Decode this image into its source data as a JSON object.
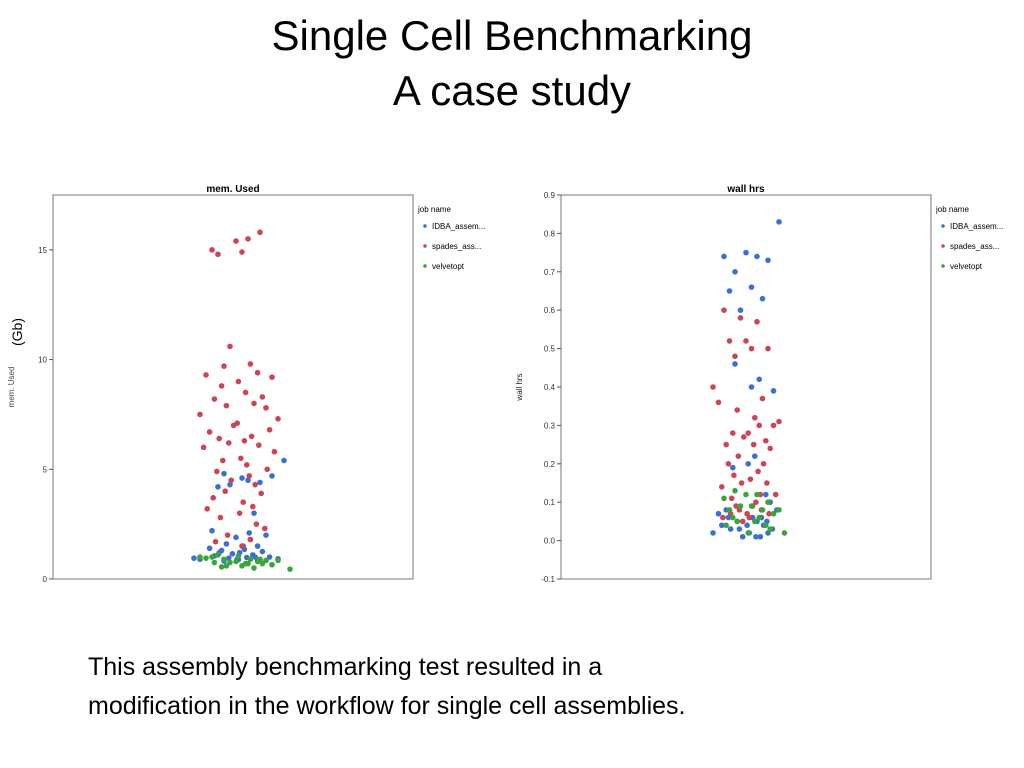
{
  "slide": {
    "title_line1": "Single Cell Benchmarking",
    "title_line2": "A case study",
    "gb_label": "(Gb)",
    "caption_line1": "This assembly benchmarking test resulted in a",
    "caption_line2": "modification in the workflow for single cell assemblies."
  },
  "colors": {
    "IDBA_assem...": "#3b6fd1",
    "spades_ass...": "#cc4455",
    "velvetopt": "#3aa63a"
  },
  "chart_data": [
    {
      "type": "scatter",
      "title": "mem. Used",
      "xlabel": "",
      "ylabel": "mem. Used",
      "ylim": [
        0,
        17.5
      ],
      "yticks": [
        0,
        5,
        10,
        15
      ],
      "grid": false,
      "legend_title": "job name",
      "legend_position": "top-right",
      "series": [
        {
          "name": "IDBA_assem...",
          "x": [
            -0.1,
            0.05,
            0.2,
            -0.15,
            0.3,
            0.1,
            -0.05,
            0.15,
            -0.2,
            0.25,
            0,
            0.12,
            -0.08,
            0.18,
            -0.22,
            0.07,
            -0.12,
            0.22,
            0.03,
            -0.03,
            0.14,
            -0.18,
            0.28,
            0.09,
            -0.06,
            0.35,
            -0.3,
            0.02,
            0.2,
            -0.1,
            0.11,
            0.06,
            -0.14,
            0.16,
            0.01,
            0.4,
            -0.35
          ],
          "y": [
            4.8,
            4.6,
            4.4,
            4.2,
            4.7,
            4.5,
            4.3,
            3,
            2.2,
            2,
            1.9,
            1.8,
            1.6,
            1.5,
            1.4,
            1.35,
            1.3,
            1.25,
            1.2,
            1.15,
            1.1,
            1.05,
            1,
            0.98,
            0.95,
            0.92,
            0.9,
            0.88,
            0.85,
            0.82,
            2.1,
            1.5,
            1.2,
            1.0,
            0.9,
            5.4,
            0.95
          ]
        },
        {
          "name": "spades_ass...",
          "x": [
            0,
            0.1,
            -0.15,
            0.2,
            0.05,
            -0.2,
            -0.05,
            0.12,
            -0.1,
            0.18,
            -0.25,
            0.3,
            0.02,
            -0.12,
            0.08,
            0.22,
            -0.18,
            0.15,
            -0.08,
            0.25,
            -0.3,
            0.35,
            0.01,
            -0.02,
            0.28,
            -0.22,
            0.13,
            -0.14,
            0.07,
            -0.06,
            0.19,
            -0.27,
            0.32,
            0.04,
            -0.11,
            0.09,
            0.26,
            -0.16,
            0.11,
            -0.04,
            0.16,
            -0.09,
            0.21,
            -0.19,
            0.06,
            0.14,
            -0.24,
            0.03,
            -0.13,
            0.17,
            0.24,
            -0.07,
            0.12,
            -0.17,
            0.05
          ],
          "y": [
            15.4,
            15.5,
            14.8,
            15.8,
            14.9,
            15.0,
            10.6,
            9.8,
            9.7,
            9.4,
            9.3,
            9.2,
            9.0,
            8.8,
            8.5,
            8.3,
            8.2,
            8.0,
            7.9,
            7.8,
            7.5,
            7.3,
            7.1,
            7.0,
            6.8,
            6.7,
            6.5,
            6.4,
            6.3,
            6.2,
            6.1,
            6.0,
            5.8,
            5.5,
            5.4,
            5.2,
            5.0,
            4.9,
            4.7,
            4.5,
            4.3,
            4.0,
            3.9,
            3.7,
            3.5,
            3.3,
            3.2,
            3.0,
            2.8,
            2.5,
            2.3,
            2.0,
            1.8,
            1.7,
            1.5
          ]
        },
        {
          "name": "velvetopt",
          "x": [
            -0.2,
            -0.1,
            0,
            0.1,
            0.2,
            -0.15,
            0.05,
            0.15,
            -0.05,
            0.25,
            -0.25,
            0.3,
            0.02,
            -0.12,
            0.08,
            0.18,
            -0.08,
            0.12,
            -0.18,
            0.22,
            0.45,
            0.35,
            -0.3
          ],
          "y": [
            1.0,
            0.9,
            0.8,
            0.7,
            0.9,
            1.1,
            0.6,
            0.5,
            0.75,
            0.85,
            0.95,
            0.65,
            1.05,
            0.55,
            0.7,
            0.8,
            0.6,
            0.9,
            0.75,
            0.7,
            0.45,
            0.85,
            1.0
          ]
        }
      ]
    },
    {
      "type": "scatter",
      "title": "wall hrs",
      "xlabel": "",
      "ylabel": "wall hrs",
      "ylim": [
        -0.1,
        0.9
      ],
      "yticks": [
        -0.1,
        0.0,
        0.1,
        0.2,
        0.3,
        0.4,
        0.5,
        0.6,
        0.7,
        0.8,
        0.9
      ],
      "grid": false,
      "legend_title": "job name",
      "legend_position": "top-right",
      "series": [
        {
          "name": "IDBA_assem...",
          "x": [
            0.3,
            -0.2,
            0,
            0.1,
            -0.1,
            0.05,
            0.15,
            -0.15,
            0.2,
            -0.05,
            0.12,
            0.05,
            -0.1,
            0.25,
            0.08,
            0.02,
            -0.12,
            0.18,
            0.22,
            -0.18,
            0.28,
            -0.25,
            0.06,
            0.14,
            -0.08,
            0.1,
            -0.22,
            0.01,
            0.16,
            -0.14,
            0.24,
            -0.06,
            0.2,
            -0.3,
            0.03,
            0.09,
            -0.03,
            0.13,
            -0.16,
            0.19
          ],
          "y": [
            0.83,
            0.74,
            0.75,
            0.74,
            0.7,
            0.66,
            0.63,
            0.65,
            0.73,
            0.6,
            0.42,
            0.4,
            0.46,
            0.39,
            0.22,
            0.2,
            0.19,
            0.12,
            0.1,
            0.08,
            0.08,
            0.07,
            0.06,
            0.06,
            0.05,
            0.05,
            0.04,
            0.04,
            0.04,
            0.03,
            0.03,
            0.03,
            0.02,
            0.02,
            0.02,
            0.01,
            0.01,
            0.01,
            0.06,
            0.05
          ]
        },
        {
          "name": "spades_ass...",
          "x": [
            -0.2,
            -0.05,
            0.1,
            0,
            -0.3,
            -0.15,
            0.05,
            0.2,
            -0.1,
            0.15,
            -0.25,
            0.25,
            0.08,
            -0.08,
            0.12,
            0.3,
            -0.12,
            0.18,
            -0.18,
            0.22,
            0.02,
            -0.02,
            0.07,
            -0.07,
            0.16,
            -0.16,
            0.11,
            -0.11,
            0.04,
            -0.04,
            0.19,
            -0.22,
            0.27,
            0.13,
            -0.13,
            0.09,
            -0.09,
            0.06,
            -0.06,
            0.14,
            -0.14,
            0.01,
            0.21,
            -0.21,
            0.03,
            -0.03
          ],
          "y": [
            0.6,
            0.58,
            0.57,
            0.52,
            0.4,
            0.52,
            0.5,
            0.5,
            0.48,
            0.37,
            0.36,
            0.3,
            0.32,
            0.34,
            0.3,
            0.31,
            0.28,
            0.26,
            0.25,
            0.24,
            0.28,
            0.27,
            0.25,
            0.22,
            0.2,
            0.2,
            0.18,
            0.17,
            0.16,
            0.15,
            0.15,
            0.14,
            0.12,
            0.12,
            0.11,
            0.1,
            0.09,
            0.09,
            0.08,
            0.08,
            0.07,
            0.07,
            0.07,
            0.06,
            0.06,
            0.05
          ]
        },
        {
          "name": "velvetopt",
          "x": [
            -0.1,
            0,
            0.1,
            -0.2,
            0.2,
            0.05,
            -0.05,
            0.15,
            -0.15,
            0.3,
            0.25,
            0.12,
            -0.12,
            0.08,
            -0.08,
            0.18,
            -0.18,
            0.22,
            0.02,
            0.35
          ],
          "y": [
            0.13,
            0.12,
            0.12,
            0.11,
            0.1,
            0.09,
            0.09,
            0.08,
            0.08,
            0.08,
            0.07,
            0.06,
            0.06,
            0.05,
            0.05,
            0.04,
            0.04,
            0.03,
            0.02,
            0.02
          ]
        }
      ]
    }
  ]
}
